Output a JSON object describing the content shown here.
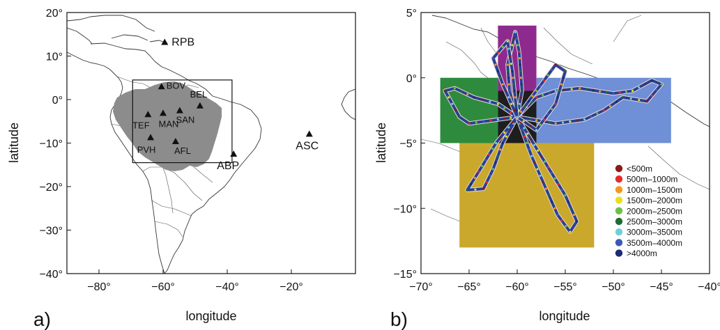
{
  "panels": [
    {
      "label": "a)",
      "xlabel": "longitude",
      "ylabel": "latitude",
      "xlim": [
        -90,
        0
      ],
      "ylim": [
        -40,
        20
      ],
      "xticks": [
        {
          "v": -80,
          "t": "−80°"
        },
        {
          "v": -60,
          "t": "−60°"
        },
        {
          "v": -40,
          "t": "−40°"
        },
        {
          "v": -20,
          "t": "−20°"
        }
      ],
      "yticks": [
        {
          "v": 20,
          "t": "20°"
        },
        {
          "v": 10,
          "t": "10°"
        },
        {
          "v": 0,
          "t": "0°"
        },
        {
          "v": -10,
          "t": "−10°"
        },
        {
          "v": -20,
          "t": "−20°"
        },
        {
          "v": -30,
          "t": "−30°"
        },
        {
          "v": -40,
          "t": "−40°"
        }
      ],
      "region_box": {
        "lon": [
          -69.5,
          -38.5
        ],
        "lat": [
          -14.5,
          4.5
        ]
      },
      "sites": [
        {
          "name": "RPB",
          "lon": -59.5,
          "lat": 13.2
        },
        {
          "name": "BOV",
          "lon": -60.5,
          "lat": 3.0
        },
        {
          "name": "BEL",
          "lon": -48.5,
          "lat": -1.4
        },
        {
          "name": "SAN",
          "lon": -54.8,
          "lat": -2.5
        },
        {
          "name": "TEF",
          "lon": -64.7,
          "lat": -3.4
        },
        {
          "name": "MAN",
          "lon": -60.0,
          "lat": -3.1
        },
        {
          "name": "PVH",
          "lon": -63.9,
          "lat": -8.7
        },
        {
          "name": "AFL",
          "lon": -56.1,
          "lat": -9.6
        },
        {
          "name": "ABP",
          "lon": -38.0,
          "lat": -12.5
        },
        {
          "name": "ASC",
          "lon": -14.4,
          "lat": -7.9
        }
      ]
    },
    {
      "label": "b)",
      "xlabel": "longitude",
      "ylabel": "latitude",
      "xlim": [
        -70,
        -40
      ],
      "ylim": [
        -15,
        5
      ],
      "xticks": [
        {
          "v": -70,
          "t": "−70°"
        },
        {
          "v": -65,
          "t": "−65°"
        },
        {
          "v": -60,
          "t": "−60°"
        },
        {
          "v": -55,
          "t": "−55°"
        },
        {
          "v": -50,
          "t": "−50°"
        },
        {
          "v": -45,
          "t": "−45°"
        },
        {
          "v": -40,
          "t": "−40°"
        }
      ],
      "yticks": [
        {
          "v": 5,
          "t": "5°"
        },
        {
          "v": 0,
          "t": "0°"
        },
        {
          "v": -5,
          "t": "−5°"
        },
        {
          "v": -10,
          "t": "−10°"
        },
        {
          "v": -15,
          "t": "−15°"
        }
      ],
      "regions": [
        {
          "color": "#8e2a8e",
          "lon": [
            -62.0,
            -58.0
          ],
          "lat": [
            -1.0,
            4.0
          ]
        },
        {
          "color": "#2e8b3e",
          "lon": [
            -68.0,
            -62.0
          ],
          "lat": [
            -5.0,
            0.0
          ]
        },
        {
          "color": "#6f8fd6",
          "lon": [
            -58.0,
            -44.0
          ],
          "lat": [
            -5.0,
            0.0
          ]
        },
        {
          "color": "#c9a82c",
          "lon": [
            -66.0,
            -52.0
          ],
          "lat": [
            -13.0,
            -5.0
          ]
        },
        {
          "color": "#1e1e1e",
          "lon": [
            -62.0,
            -58.0
          ],
          "lat": [
            -5.0,
            -1.0
          ]
        }
      ],
      "legend": [
        {
          "label": "<500m",
          "color": "#8b1a1a"
        },
        {
          "label": "500m–1000m",
          "color": "#e52c2c"
        },
        {
          "label": "1000m–1500m",
          "color": "#f39a1d"
        },
        {
          "label": "1500m–2000m",
          "color": "#e7e020"
        },
        {
          "label": "2000m–2500m",
          "color": "#6cc04a"
        },
        {
          "label": "2500m–3000m",
          "color": "#1d6e32"
        },
        {
          "label": "3000m–3500m",
          "color": "#6fd0d8"
        },
        {
          "label": "3500m–4000m",
          "color": "#3a5bb5"
        },
        {
          "label": ">4000m",
          "color": "#1c2a73"
        }
      ]
    }
  ]
}
